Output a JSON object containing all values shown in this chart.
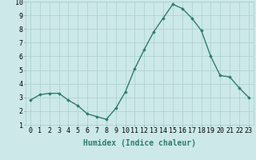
{
  "x": [
    0,
    1,
    2,
    3,
    4,
    5,
    6,
    7,
    8,
    9,
    10,
    11,
    12,
    13,
    14,
    15,
    16,
    17,
    18,
    19,
    20,
    21,
    22,
    23
  ],
  "y": [
    2.8,
    3.2,
    3.3,
    3.3,
    2.8,
    2.4,
    1.8,
    1.6,
    1.4,
    2.2,
    3.4,
    5.1,
    6.5,
    7.8,
    8.8,
    9.8,
    9.5,
    8.8,
    7.9,
    6.0,
    4.6,
    4.5,
    3.7,
    3.0
  ],
  "line_color": "#2e7d6e",
  "marker": "D",
  "marker_size": 1.8,
  "bg_color": "#cce8e8",
  "grid_color": "#aacfcf",
  "xlabel": "Humidex (Indice chaleur)",
  "xlim": [
    -0.5,
    23.5
  ],
  "ylim": [
    1,
    10
  ],
  "yticks": [
    1,
    2,
    3,
    4,
    5,
    6,
    7,
    8,
    9,
    10
  ],
  "xticks": [
    0,
    1,
    2,
    3,
    4,
    5,
    6,
    7,
    8,
    9,
    10,
    11,
    12,
    13,
    14,
    15,
    16,
    17,
    18,
    19,
    20,
    21,
    22,
    23
  ],
  "xlabel_fontsize": 7,
  "tick_fontsize": 6,
  "line_width": 1.0
}
